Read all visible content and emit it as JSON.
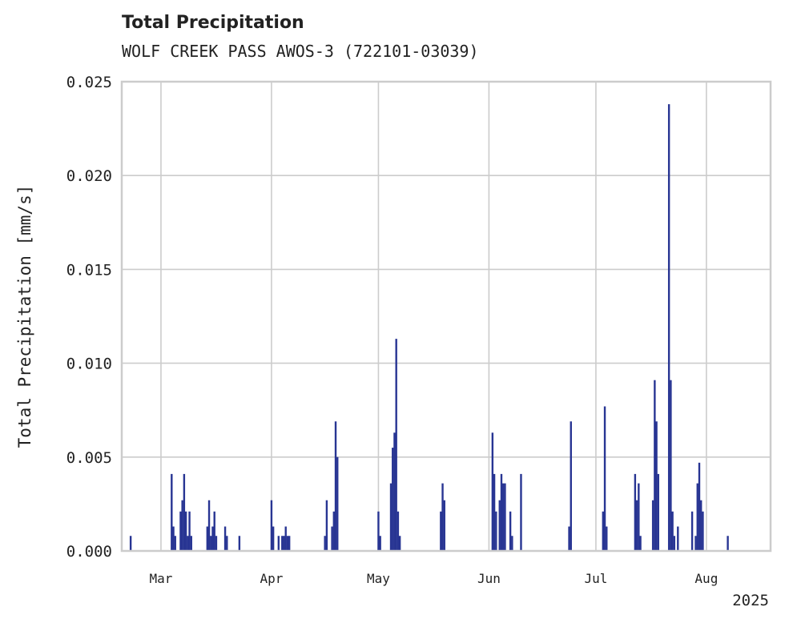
{
  "chart_data": {
    "type": "bar",
    "title": "Total Precipitation",
    "subtitle": "WOLF CREEK PASS AWOS-3 (722101-03039)",
    "ylabel": "Total Precipitation [mm/s]",
    "xlabel": "",
    "ylim": [
      0,
      0.025
    ],
    "xlim": [
      "2025-02-18",
      "2025-08-19"
    ],
    "yticks": [
      "0.000",
      "0.005",
      "0.010",
      "0.015",
      "0.020",
      "0.025"
    ],
    "xticks": [
      {
        "date": "2025-03-01",
        "label": "Mar"
      },
      {
        "date": "2025-04-01",
        "label": "Apr"
      },
      {
        "date": "2025-05-01",
        "label": "May"
      },
      {
        "date": "2025-06-01",
        "label": "Jun"
      },
      {
        "date": "2025-07-01",
        "label": "Jul"
      },
      {
        "date": "2025-08-01",
        "label": "Aug"
      }
    ],
    "year_label": "2025",
    "grid": true,
    "bar_color": "#283593",
    "series": [
      {
        "x": [
          "2025-02-20T12:00",
          "2025-03-04T00:00",
          "2025-03-04T12:00",
          "2025-03-05T00:00",
          "2025-03-06T12:00",
          "2025-03-07T00:00",
          "2025-03-07T12:00",
          "2025-03-08T00:00",
          "2025-03-08T12:00",
          "2025-03-09T00:00",
          "2025-03-09T12:00",
          "2025-03-14T00:00",
          "2025-03-14T12:00",
          "2025-03-15T00:00",
          "2025-03-15T12:00",
          "2025-03-16T00:00",
          "2025-03-16T12:00",
          "2025-03-19T00:00",
          "2025-03-19T12:00",
          "2025-03-23T00:00",
          "2025-04-01T00:00",
          "2025-04-01T12:00",
          "2025-04-03T00:00",
          "2025-04-04T00:00",
          "2025-04-04T12:00",
          "2025-04-05T00:00",
          "2025-04-05T12:00",
          "2025-04-06T00:00",
          "2025-04-16T00:00",
          "2025-04-16T12:00",
          "2025-04-18T00:00",
          "2025-04-18T12:00",
          "2025-04-19T00:00",
          "2025-04-19T12:00",
          "2025-05-01T00:00",
          "2025-05-01T12:00",
          "2025-05-04T12:00",
          "2025-05-05T00:00",
          "2025-05-05T12:00",
          "2025-05-06T00:00",
          "2025-05-06T12:00",
          "2025-05-07T00:00",
          "2025-05-18T12:00",
          "2025-05-19T00:00",
          "2025-05-19T12:00",
          "2025-06-02T00:00",
          "2025-06-02T12:00",
          "2025-06-03T00:00",
          "2025-06-04T00:00",
          "2025-06-04T12:00",
          "2025-06-05T00:00",
          "2025-06-05T12:00",
          "2025-06-07T00:00",
          "2025-06-07T12:00",
          "2025-06-10T00:00",
          "2025-06-23T12:00",
          "2025-06-24T00:00",
          "2025-07-03T00:00",
          "2025-07-03T12:00",
          "2025-07-04T00:00",
          "2025-07-12T00:00",
          "2025-07-12T12:00",
          "2025-07-13T00:00",
          "2025-07-13T12:00",
          "2025-07-17T00:00",
          "2025-07-17T12:00",
          "2025-07-18T00:00",
          "2025-07-18T12:00",
          "2025-07-21T12:00",
          "2025-07-22T00:00",
          "2025-07-22T12:00",
          "2025-07-23T00:00",
          "2025-07-24T00:00",
          "2025-07-28T00:00",
          "2025-07-29T00:00",
          "2025-07-29T12:00",
          "2025-07-30T00:00",
          "2025-07-30T12:00",
          "2025-07-31T00:00",
          "2025-08-07T00:00"
        ],
        "values": [
          0.0008,
          0.0041,
          0.0013,
          0.0008,
          0.0021,
          0.0027,
          0.0041,
          0.0021,
          0.0008,
          0.0021,
          0.0008,
          0.0013,
          0.0027,
          0.0008,
          0.0013,
          0.0021,
          0.0008,
          0.0013,
          0.0008,
          0.0008,
          0.0027,
          0.0013,
          0.0008,
          0.0008,
          0.0008,
          0.0013,
          0.0008,
          0.0008,
          0.0008,
          0.0027,
          0.0013,
          0.0021,
          0.0069,
          0.005,
          0.0021,
          0.0008,
          0.0036,
          0.0055,
          0.0063,
          0.0113,
          0.0021,
          0.0008,
          0.0021,
          0.0036,
          0.0027,
          0.0063,
          0.0041,
          0.0021,
          0.0027,
          0.0041,
          0.0036,
          0.0036,
          0.0021,
          0.0008,
          0.0041,
          0.0013,
          0.0069,
          0.0021,
          0.0077,
          0.0013,
          0.0041,
          0.0027,
          0.0036,
          0.0008,
          0.0027,
          0.0091,
          0.0069,
          0.0041,
          0.0238,
          0.0091,
          0.0021,
          0.0008,
          0.0013,
          0.0021,
          0.0008,
          0.0036,
          0.0047,
          0.0027,
          0.0021,
          0.0008
        ]
      }
    ]
  }
}
